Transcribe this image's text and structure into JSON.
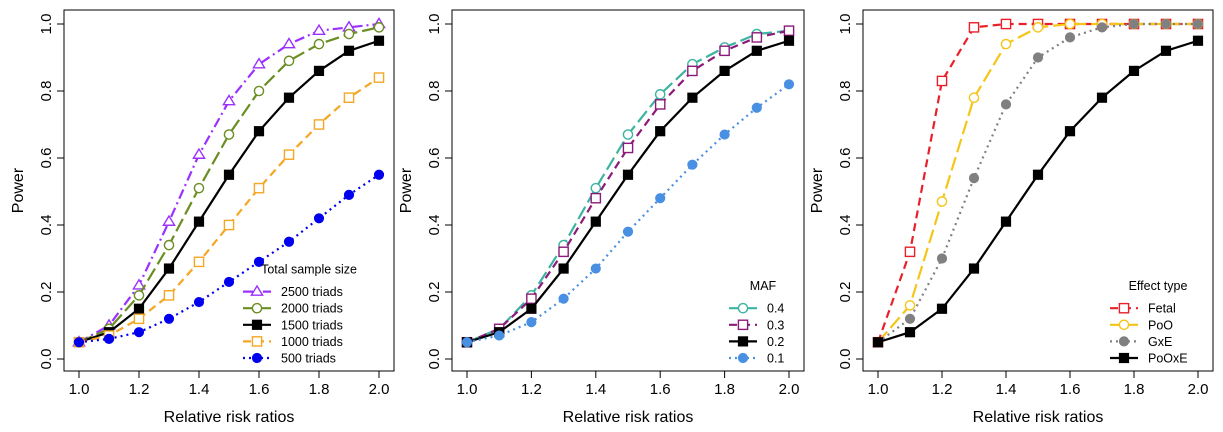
{
  "chart_data": [
    {
      "type": "line",
      "xlabel": "Relative risk ratios",
      "ylabel": "Power",
      "xlim": [
        1.0,
        2.0
      ],
      "ylim": [
        0.0,
        1.0
      ],
      "xticks": [
        "1.0",
        "1.2",
        "1.4",
        "1.6",
        "1.8",
        "2.0"
      ],
      "yticks": [
        "0.0",
        "0.2",
        "0.4",
        "0.6",
        "0.8",
        "1.0"
      ],
      "legend_title": "Total sample size",
      "legend_position": "bottom-right",
      "x": [
        1.0,
        1.1,
        1.2,
        1.3,
        1.4,
        1.5,
        1.6,
        1.7,
        1.8,
        1.9,
        2.0
      ],
      "series": [
        {
          "name": "2500 triads",
          "color": "#9b30ff",
          "marker": "open-triangle",
          "dash": "dashdot",
          "values": [
            0.05,
            0.1,
            0.22,
            0.41,
            0.61,
            0.77,
            0.88,
            0.94,
            0.98,
            0.99,
            1.0
          ]
        },
        {
          "name": "2000 triads",
          "color": "#6b8e23",
          "marker": "open-circle",
          "dash": "longdash",
          "values": [
            0.05,
            0.09,
            0.19,
            0.34,
            0.51,
            0.67,
            0.8,
            0.89,
            0.94,
            0.97,
            0.99
          ]
        },
        {
          "name": "1500 triads",
          "color": "#000000",
          "marker": "filled-square",
          "dash": "solid",
          "values": [
            0.05,
            0.08,
            0.15,
            0.27,
            0.41,
            0.55,
            0.68,
            0.78,
            0.86,
            0.92,
            0.95
          ]
        },
        {
          "name": "1000 triads",
          "color": "#f5a623",
          "marker": "open-square",
          "dash": "dashed",
          "values": [
            0.05,
            0.07,
            0.12,
            0.19,
            0.29,
            0.4,
            0.51,
            0.61,
            0.7,
            0.78,
            0.84
          ]
        },
        {
          "name": "500 triads",
          "color": "#0000ee",
          "marker": "filled-circle",
          "dash": "dotted",
          "values": [
            0.05,
            0.06,
            0.08,
            0.12,
            0.17,
            0.23,
            0.29,
            0.35,
            0.42,
            0.49,
            0.55
          ]
        }
      ]
    },
    {
      "type": "line",
      "xlabel": "Relative risk ratios",
      "ylabel": "Power",
      "xlim": [
        1.0,
        2.0
      ],
      "ylim": [
        0.0,
        1.0
      ],
      "xticks": [
        "1.0",
        "1.2",
        "1.4",
        "1.6",
        "1.8",
        "2.0"
      ],
      "yticks": [
        "0.0",
        "0.2",
        "0.4",
        "0.6",
        "0.8",
        "1.0"
      ],
      "legend_title": "MAF",
      "legend_position": "bottom-right",
      "x": [
        1.0,
        1.1,
        1.2,
        1.3,
        1.4,
        1.5,
        1.6,
        1.7,
        1.8,
        1.9,
        2.0
      ],
      "series": [
        {
          "name": "0.4",
          "color": "#3cb4a0",
          "marker": "open-circle",
          "dash": "longdash",
          "values": [
            0.05,
            0.09,
            0.19,
            0.34,
            0.51,
            0.67,
            0.79,
            0.88,
            0.93,
            0.97,
            0.98
          ]
        },
        {
          "name": "0.3",
          "color": "#8b1a7a",
          "marker": "open-square",
          "dash": "dashed",
          "values": [
            0.05,
            0.09,
            0.18,
            0.32,
            0.48,
            0.63,
            0.76,
            0.86,
            0.92,
            0.96,
            0.98
          ]
        },
        {
          "name": "0.2",
          "color": "#000000",
          "marker": "filled-square",
          "dash": "solid",
          "values": [
            0.05,
            0.08,
            0.15,
            0.27,
            0.41,
            0.55,
            0.68,
            0.78,
            0.86,
            0.92,
            0.95
          ]
        },
        {
          "name": "0.1",
          "color": "#4a90e2",
          "marker": "filled-circle",
          "dash": "dotted",
          "values": [
            0.05,
            0.07,
            0.11,
            0.18,
            0.27,
            0.38,
            0.48,
            0.58,
            0.67,
            0.75,
            0.82
          ]
        }
      ]
    },
    {
      "type": "line",
      "xlabel": "Relative risk ratios",
      "ylabel": "Power",
      "xlim": [
        1.0,
        2.0
      ],
      "ylim": [
        0.0,
        1.0
      ],
      "xticks": [
        "1.0",
        "1.2",
        "1.4",
        "1.6",
        "1.8",
        "2.0"
      ],
      "yticks": [
        "0.0",
        "0.2",
        "0.4",
        "0.6",
        "0.8",
        "1.0"
      ],
      "legend_title": "Effect type",
      "legend_position": "bottom-right",
      "x": [
        1.0,
        1.1,
        1.2,
        1.3,
        1.4,
        1.5,
        1.6,
        1.7,
        1.8,
        1.9,
        2.0
      ],
      "series": [
        {
          "name": "Fetal",
          "color": "#e8202a",
          "marker": "open-square",
          "dash": "dashed",
          "values": [
            0.05,
            0.32,
            0.83,
            0.99,
            1.0,
            1.0,
            1.0,
            1.0,
            1.0,
            1.0,
            1.0
          ]
        },
        {
          "name": "PoO",
          "color": "#f5c518",
          "marker": "open-circle",
          "dash": "longdash",
          "values": [
            0.05,
            0.16,
            0.47,
            0.78,
            0.94,
            0.99,
            1.0,
            1.0,
            1.0,
            1.0,
            1.0
          ]
        },
        {
          "name": "GxE",
          "color": "#808080",
          "marker": "filled-circle",
          "dash": "dotted",
          "values": [
            0.05,
            0.12,
            0.3,
            0.54,
            0.76,
            0.9,
            0.96,
            0.99,
            1.0,
            1.0,
            1.0
          ]
        },
        {
          "name": "PoOxE",
          "color": "#000000",
          "marker": "filled-square",
          "dash": "solid",
          "values": [
            0.05,
            0.08,
            0.15,
            0.27,
            0.41,
            0.55,
            0.68,
            0.78,
            0.86,
            0.92,
            0.95
          ]
        }
      ]
    }
  ]
}
